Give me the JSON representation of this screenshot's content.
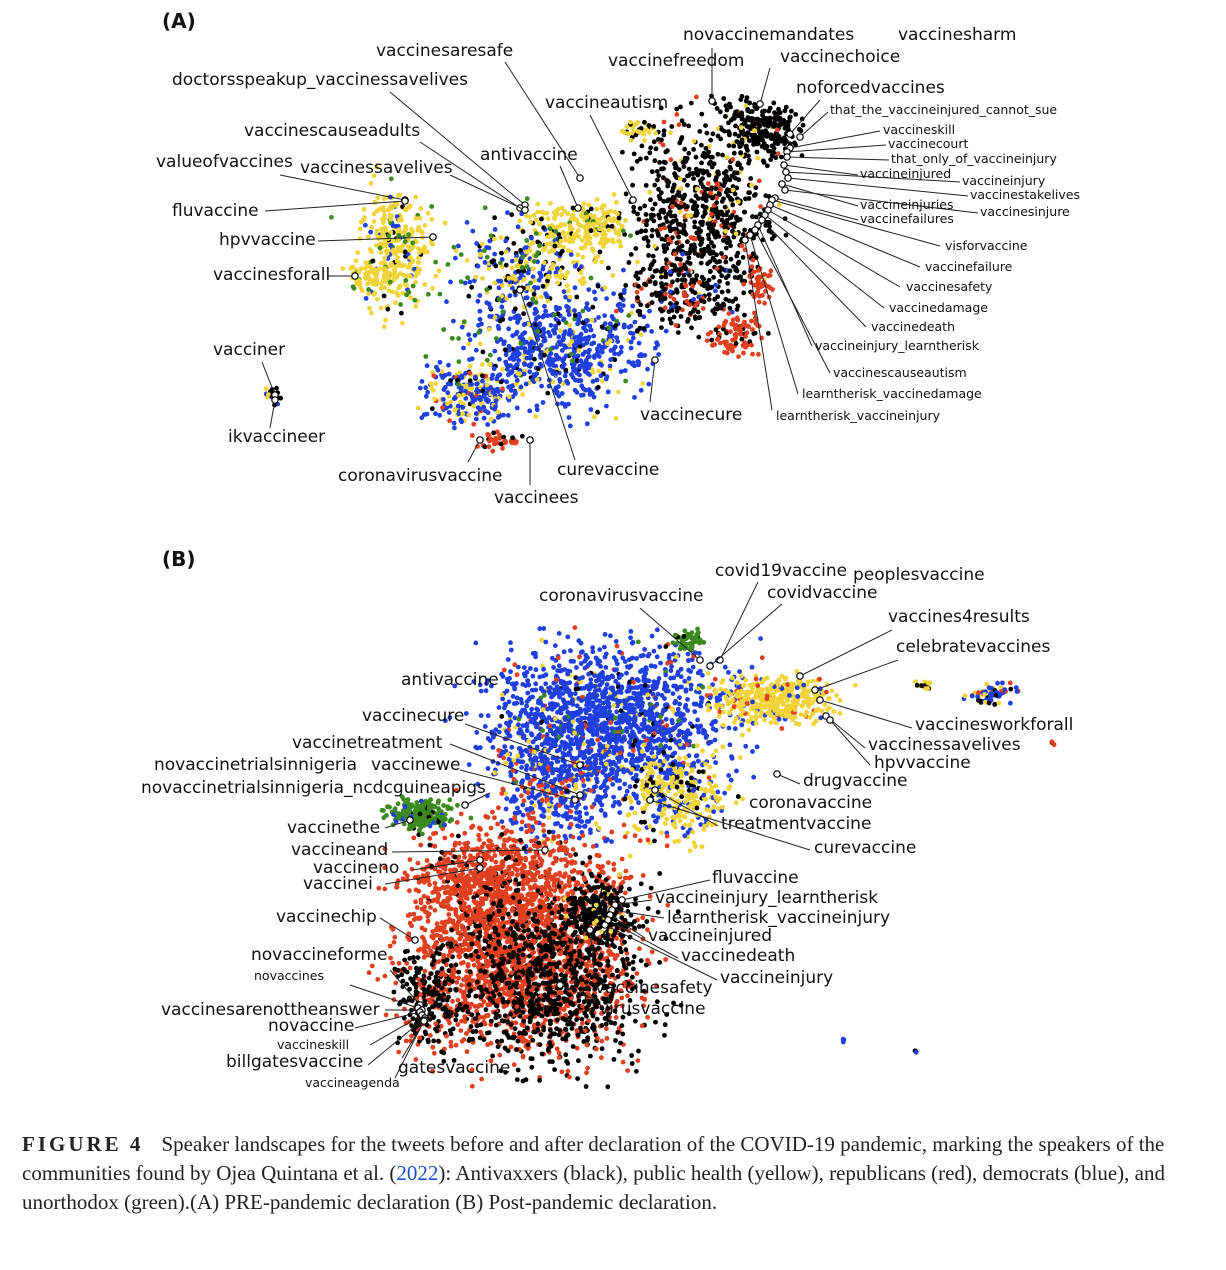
{
  "figure": {
    "panels": [
      {
        "label": "(A)",
        "annotations": [
          "novaccinemandates",
          "vaccinesharm",
          "vaccinefreedom",
          "vaccinechoice",
          "vaccinesaresafe",
          "doctorsspeakup_vaccinessavelives",
          "noforcedvaccines",
          "vaccineautism",
          "that_the_vaccineinjured_cannot_sue",
          "vaccinescauseadults",
          "vaccineskill",
          "vaccinecourt",
          "antivaccine",
          "that_only_of_vaccineinjury",
          "valueofvaccines",
          "vaccinessavelives",
          "vaccineinjured",
          "vaccineinjury",
          "vaccinestakelives",
          "vaccineinjuries",
          "vaccinesinjure",
          "vaccinefailures",
          "fluvaccine",
          "hpvvaccine",
          "visforvaccine",
          "vaccinesforall",
          "vaccinefailure",
          "vaccinesafety",
          "vaccinedamage",
          "vaccinedeath",
          "vaccineinjury_learntherisk",
          "vacciner",
          "vaccinescauseautism",
          "learntherisk_vaccinedamage",
          "learntherisk_vaccineinjury",
          "vaccinecure",
          "ikvaccineer",
          "coronavirusvaccine",
          "curevaccine",
          "vaccinees"
        ]
      },
      {
        "label": "(B)",
        "annotations": [
          "covid19vaccine",
          "peoplesvaccine",
          "coronavirusvaccine",
          "covidvaccine",
          "vaccines4results",
          "celebratevaccines",
          "antivaccine",
          "vaccinesworkforall",
          "vaccinecure",
          "vaccinessavelives",
          "vaccinetreatment",
          "hpvvaccine",
          "novaccinetrialsinnigeria",
          "vaccinewe",
          "drugvaccine",
          "novaccinetrialsinnigeria_ncdcguineapigs",
          "coronavaccine",
          "vaccinethe",
          "treatmentvaccine",
          "vaccineand",
          "curevaccine",
          "vaccineno",
          "vaccinei",
          "fluvaccine",
          "vaccineinjury_learntherisk",
          "vaccinechip",
          "learntherisk_vaccineinjury",
          "vaccineinjured",
          "novaccineforme",
          "vaccinedeath",
          "novaccines",
          "vaccineinjury",
          "vaccinesafety",
          "vaccinesarenottheanswer",
          "virusvaccine",
          "novaccine",
          "vaccineskill",
          "billgatesvaccine",
          "gatesvaccine",
          "vaccineagenda"
        ]
      }
    ],
    "caption": {
      "lead": "FIGURE 4",
      "before": "Speaker landscapes for the tweets before and after declaration of the COVID-19 pandemic, marking the speakers of the communities found by Ojea Quintana et al. (",
      "citation": "2022",
      "after": "): Antivaxxers (black), public health (yellow), republicans (red), democrats (blue), and unorthodox (green).(A) PRE-pandemic declaration (B) Post-pandemic declaration."
    }
  }
}
